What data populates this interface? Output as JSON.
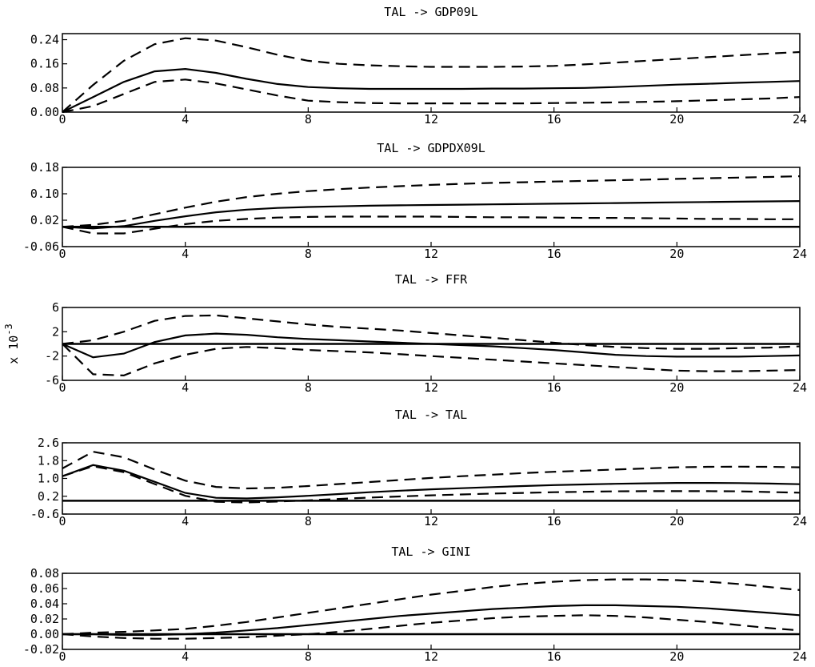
{
  "chart_data": [
    {
      "type": "line",
      "title": "TAL -> GDP09L",
      "scale_note": "",
      "xlim": [
        0,
        24
      ],
      "ylim": [
        0,
        0.26
      ],
      "xticks": [
        "0",
        "4",
        "8",
        "12",
        "16",
        "20",
        "24"
      ],
      "yticks": [
        "0.00",
        "0.08",
        "0.16",
        "0.24"
      ],
      "zero_line": false,
      "x": [
        0,
        1,
        2,
        3,
        4,
        5,
        6,
        7,
        8,
        9,
        10,
        11,
        12,
        13,
        14,
        15,
        16,
        17,
        18,
        19,
        20,
        21,
        22,
        23,
        24
      ],
      "series": [
        {
          "role": "response",
          "values": [
            0,
            0.05,
            0.1,
            0.135,
            0.143,
            0.13,
            0.11,
            0.093,
            0.083,
            0.079,
            0.077,
            0.077,
            0.077,
            0.077,
            0.078,
            0.078,
            0.079,
            0.08,
            0.083,
            0.087,
            0.091,
            0.094,
            0.097,
            0.1,
            0.103
          ]
        },
        {
          "role": "upper",
          "values": [
            0,
            0.09,
            0.17,
            0.225,
            0.245,
            0.237,
            0.215,
            0.19,
            0.17,
            0.16,
            0.155,
            0.152,
            0.15,
            0.15,
            0.15,
            0.151,
            0.153,
            0.158,
            0.164,
            0.17,
            0.176,
            0.182,
            0.188,
            0.194,
            0.199
          ]
        },
        {
          "role": "lower",
          "values": [
            0,
            0.02,
            0.06,
            0.1,
            0.108,
            0.095,
            0.075,
            0.055,
            0.038,
            0.033,
            0.03,
            0.029,
            0.029,
            0.029,
            0.029,
            0.029,
            0.03,
            0.031,
            0.032,
            0.034,
            0.036,
            0.039,
            0.042,
            0.045,
            0.05
          ]
        }
      ]
    },
    {
      "type": "line",
      "title": "TAL -> GDPDX09L",
      "scale_note": "",
      "xlim": [
        0,
        24
      ],
      "ylim": [
        -0.06,
        0.18
      ],
      "xticks": [
        "0",
        "4",
        "8",
        "12",
        "16",
        "20",
        "24"
      ],
      "yticks": [
        "-0.06",
        "0.02",
        "0.10",
        "0.18"
      ],
      "zero_line": true,
      "x": [
        0,
        1,
        2,
        3,
        4,
        5,
        6,
        7,
        8,
        9,
        10,
        11,
        12,
        13,
        14,
        15,
        16,
        17,
        18,
        19,
        20,
        21,
        22,
        23,
        24
      ],
      "series": [
        {
          "role": "response",
          "values": [
            0,
            -0.005,
            0.002,
            0.018,
            0.032,
            0.044,
            0.052,
            0.057,
            0.06,
            0.062,
            0.064,
            0.065,
            0.066,
            0.067,
            0.068,
            0.069,
            0.07,
            0.071,
            0.072,
            0.073,
            0.074,
            0.075,
            0.076,
            0.077,
            0.078
          ]
        },
        {
          "role": "upper",
          "values": [
            0,
            0.006,
            0.018,
            0.038,
            0.058,
            0.076,
            0.09,
            0.1,
            0.108,
            0.114,
            0.119,
            0.123,
            0.127,
            0.13,
            0.133,
            0.135,
            0.137,
            0.139,
            0.141,
            0.143,
            0.145,
            0.147,
            0.149,
            0.151,
            0.153
          ]
        },
        {
          "role": "lower",
          "values": [
            0,
            -0.02,
            -0.02,
            -0.006,
            0.008,
            0.018,
            0.024,
            0.028,
            0.03,
            0.031,
            0.031,
            0.031,
            0.031,
            0.03,
            0.029,
            0.029,
            0.028,
            0.027,
            0.027,
            0.026,
            0.025,
            0.024,
            0.024,
            0.023,
            0.023
          ]
        }
      ]
    },
    {
      "type": "line",
      "title": "TAL -> FFR",
      "scale_note": "x 10",
      "scale_exp": "-3",
      "xlim": [
        0,
        24
      ],
      "ylim": [
        -6,
        6
      ],
      "xticks": [
        "0",
        "4",
        "8",
        "12",
        "16",
        "20",
        "24"
      ],
      "yticks": [
        "-6",
        "-2",
        "2",
        "6"
      ],
      "zero_line": true,
      "x": [
        0,
        1,
        2,
        3,
        4,
        5,
        6,
        7,
        8,
        9,
        10,
        11,
        12,
        13,
        14,
        15,
        16,
        17,
        18,
        19,
        20,
        21,
        22,
        23,
        24
      ],
      "series": [
        {
          "role": "response",
          "values": [
            0,
            -2.2,
            -1.6,
            0.3,
            1.4,
            1.7,
            1.5,
            1.1,
            0.8,
            0.6,
            0.4,
            0.2,
            0.0,
            -0.2,
            -0.4,
            -0.7,
            -1.0,
            -1.4,
            -1.8,
            -2.0,
            -2.1,
            -2.1,
            -2.1,
            -2.0,
            -1.9
          ]
        },
        {
          "role": "upper",
          "values": [
            0,
            0.6,
            2.0,
            3.8,
            4.6,
            4.7,
            4.2,
            3.7,
            3.2,
            2.8,
            2.5,
            2.2,
            1.8,
            1.4,
            1.0,
            0.6,
            0.2,
            -0.2,
            -0.5,
            -0.7,
            -0.8,
            -0.8,
            -0.7,
            -0.6,
            -0.4
          ]
        },
        {
          "role": "lower",
          "values": [
            0,
            -5.0,
            -5.2,
            -3.2,
            -1.8,
            -0.8,
            -0.5,
            -0.7,
            -1.0,
            -1.2,
            -1.4,
            -1.7,
            -2.0,
            -2.3,
            -2.6,
            -2.9,
            -3.2,
            -3.5,
            -3.8,
            -4.1,
            -4.4,
            -4.5,
            -4.5,
            -4.4,
            -4.3
          ]
        }
      ]
    },
    {
      "type": "line",
      "title": "TAL -> TAL",
      "scale_note": "",
      "xlim": [
        0,
        24
      ],
      "ylim": [
        -0.6,
        2.6
      ],
      "xticks": [
        "0",
        "4",
        "8",
        "12",
        "16",
        "20",
        "24"
      ],
      "yticks": [
        "-0.6",
        "0.2",
        "1.0",
        "1.8",
        "2.6"
      ],
      "zero_line": true,
      "x": [
        0,
        1,
        2,
        3,
        4,
        5,
        6,
        7,
        8,
        9,
        10,
        11,
        12,
        13,
        14,
        15,
        16,
        17,
        18,
        19,
        20,
        21,
        22,
        23,
        24
      ],
      "series": [
        {
          "role": "response",
          "values": [
            1.1,
            1.6,
            1.35,
            0.85,
            0.35,
            0.13,
            0.1,
            0.15,
            0.22,
            0.3,
            0.38,
            0.45,
            0.51,
            0.56,
            0.61,
            0.66,
            0.7,
            0.73,
            0.76,
            0.78,
            0.8,
            0.8,
            0.79,
            0.77,
            0.74
          ]
        },
        {
          "role": "lower",
          "values": [
            1.1,
            1.55,
            1.28,
            0.75,
            0.22,
            -0.05,
            -0.08,
            -0.04,
            0.02,
            0.08,
            0.14,
            0.19,
            0.24,
            0.28,
            0.32,
            0.35,
            0.38,
            0.4,
            0.42,
            0.43,
            0.43,
            0.43,
            0.42,
            0.39,
            0.36
          ]
        },
        {
          "role": "upper",
          "values": [
            1.45,
            2.2,
            1.95,
            1.4,
            0.9,
            0.62,
            0.55,
            0.58,
            0.66,
            0.75,
            0.84,
            0.93,
            1.02,
            1.1,
            1.17,
            1.24,
            1.3,
            1.35,
            1.4,
            1.45,
            1.5,
            1.52,
            1.53,
            1.52,
            1.5
          ]
        }
      ]
    },
    {
      "type": "line",
      "title": "TAL -> GINI",
      "scale_note": "",
      "xlim": [
        0,
        24
      ],
      "ylim": [
        -0.02,
        0.08
      ],
      "xticks": [
        "0",
        "4",
        "8",
        "12",
        "16",
        "20",
        "24"
      ],
      "yticks": [
        "-0.02",
        "0.00",
        "0.02",
        "0.04",
        "0.06",
        "0.08"
      ],
      "zero_line": true,
      "x": [
        0,
        1,
        2,
        3,
        4,
        5,
        6,
        7,
        8,
        9,
        10,
        11,
        12,
        13,
        14,
        15,
        16,
        17,
        18,
        19,
        20,
        21,
        22,
        23,
        24
      ],
      "series": [
        {
          "role": "response",
          "values": [
            0,
            0,
            -0.001,
            -0.001,
            0,
            0.002,
            0.005,
            0.008,
            0.012,
            0.016,
            0.02,
            0.024,
            0.027,
            0.03,
            0.033,
            0.035,
            0.037,
            0.038,
            0.038,
            0.037,
            0.036,
            0.034,
            0.031,
            0.028,
            0.025
          ]
        },
        {
          "role": "upper",
          "values": [
            0,
            0.002,
            0.003,
            0.005,
            0.007,
            0.011,
            0.016,
            0.022,
            0.028,
            0.034,
            0.04,
            0.046,
            0.052,
            0.057,
            0.062,
            0.066,
            0.069,
            0.071,
            0.072,
            0.072,
            0.071,
            0.069,
            0.066,
            0.062,
            0.058
          ]
        },
        {
          "role": "lower",
          "values": [
            0,
            -0.003,
            -0.005,
            -0.006,
            -0.006,
            -0.005,
            -0.004,
            -0.002,
            0.0,
            0.003,
            0.007,
            0.011,
            0.015,
            0.018,
            0.021,
            0.023,
            0.024,
            0.025,
            0.024,
            0.022,
            0.019,
            0.016,
            0.012,
            0.008,
            0.005
          ]
        }
      ]
    }
  ]
}
